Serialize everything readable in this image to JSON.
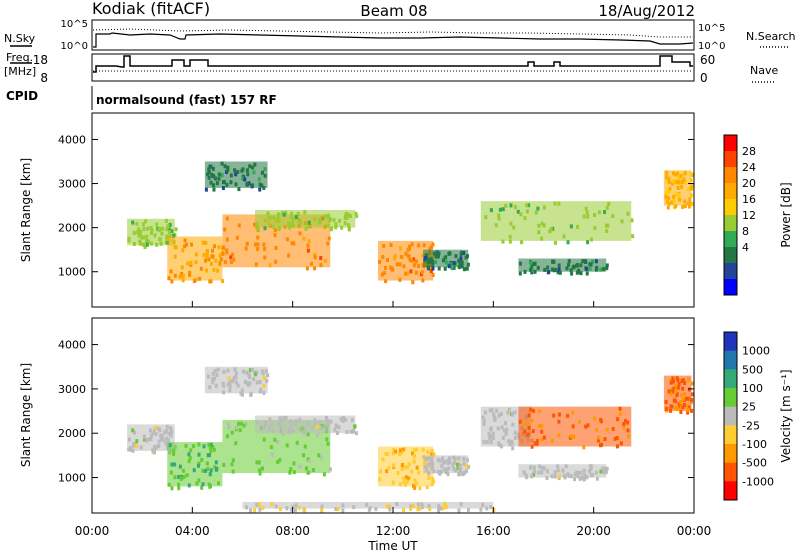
{
  "header": {
    "station": "Kodiak (fitACF)",
    "beam": "Beam 08",
    "date": "18/Aug/2012"
  },
  "noise_panel": {
    "left_label": "N.Sky",
    "right_label": "N.Search",
    "ticks": [
      "10^5",
      "10^0"
    ]
  },
  "freq_panel": {
    "left_label_1": "Freq.",
    "left_label_2": "[MHz]",
    "left_ticks": [
      "18",
      "8"
    ],
    "right_label": "Nave",
    "right_ticks": [
      "60",
      "0"
    ]
  },
  "cpid_panel": {
    "label": "CPID",
    "program": "normalsound (fast) 157 RF"
  },
  "power_colorbar": {
    "title": "Power [dB]",
    "ticks": [
      "28",
      "24",
      "20",
      "16",
      "12",
      "8",
      "4"
    ],
    "colors": [
      "#ff0000",
      "#ff4400",
      "#ff8800",
      "#ffaa00",
      "#ffcc00",
      "#99cc33",
      "#33aa55",
      "#227744",
      "#224499",
      "#0000ff"
    ]
  },
  "velocity_colorbar": {
    "title": "Velocity [m s⁻¹]",
    "ticks": [
      "1000",
      "500",
      "100",
      "25",
      "-25",
      "-100",
      "-500",
      "-1000"
    ],
    "colors": [
      "#2233bb",
      "#2277aa",
      "#33aa77",
      "#66cc33",
      "#bbbbbb",
      "#ffcc33",
      "#ff9900",
      "#ff5500",
      "#ff0000"
    ]
  },
  "chart_data": [
    {
      "type": "heatmap",
      "name": "Power",
      "ylabel": "Slant Range [km]",
      "y_ticks": [
        1000,
        2000,
        3000,
        4000
      ],
      "ylim": [
        200,
        4600
      ],
      "x_ticks": [
        "00:00",
        "04:00",
        "08:00",
        "12:00",
        "16:00",
        "20:00",
        "00:00"
      ],
      "xlim_hours": [
        0,
        24
      ],
      "colorbar_label": "Power [dB]",
      "colorbar_range": [
        0,
        32
      ],
      "echo_regions": [
        {
          "t_start": 1.4,
          "t_end": 3.3,
          "r_start": 1600,
          "r_end": 2200,
          "value": 14
        },
        {
          "t_start": 3.0,
          "t_end": 5.2,
          "r_start": 800,
          "r_end": 1800,
          "value": 22
        },
        {
          "t_start": 5.2,
          "t_end": 9.5,
          "r_start": 1100,
          "r_end": 2300,
          "value": 24
        },
        {
          "t_start": 6.5,
          "t_end": 10.5,
          "r_start": 2000,
          "r_end": 2400,
          "value": 14
        },
        {
          "t_start": 4.5,
          "t_end": 7.0,
          "r_start": 2900,
          "r_end": 3500,
          "value": 8
        },
        {
          "t_start": 11.4,
          "t_end": 13.6,
          "r_start": 800,
          "r_end": 1700,
          "value": 24
        },
        {
          "t_start": 13.2,
          "t_end": 15.0,
          "r_start": 1100,
          "r_end": 1500,
          "value": 8
        },
        {
          "t_start": 15.5,
          "t_end": 21.5,
          "r_start": 1700,
          "r_end": 2600,
          "value": 14
        },
        {
          "t_start": 17.0,
          "t_end": 20.5,
          "r_start": 1000,
          "r_end": 1300,
          "value": 8
        },
        {
          "t_start": 22.8,
          "t_end": 23.9,
          "r_start": 2500,
          "r_end": 3300,
          "value": 20
        }
      ]
    },
    {
      "type": "heatmap",
      "name": "Velocity",
      "ylabel": "Slant Range [km]",
      "y_ticks": [
        1000,
        2000,
        3000,
        4000
      ],
      "ylim": [
        200,
        4600
      ],
      "x_ticks": [
        "00:00",
        "04:00",
        "08:00",
        "12:00",
        "16:00",
        "20:00",
        "00:00"
      ],
      "xlim_hours": [
        0,
        24
      ],
      "xlabel": "Time UT",
      "colorbar_label": "Velocity [m s⁻¹]",
      "colorbar_range": [
        -1000,
        1000
      ],
      "echo_regions": [
        {
          "t_start": 1.4,
          "t_end": 3.3,
          "r_start": 1600,
          "r_end": 2200,
          "value": 0
        },
        {
          "t_start": 3.0,
          "t_end": 5.2,
          "r_start": 800,
          "r_end": 1800,
          "value": 300
        },
        {
          "t_start": 5.2,
          "t_end": 9.5,
          "r_start": 1100,
          "r_end": 2300,
          "value": 150
        },
        {
          "t_start": 6.5,
          "t_end": 10.5,
          "r_start": 2000,
          "r_end": 2400,
          "value": 0
        },
        {
          "t_start": 4.5,
          "t_end": 7.0,
          "r_start": 2900,
          "r_end": 3500,
          "value": 0
        },
        {
          "t_start": 11.4,
          "t_end": 13.6,
          "r_start": 800,
          "r_end": 1700,
          "value": -250
        },
        {
          "t_start": 13.2,
          "t_end": 15.0,
          "r_start": 1100,
          "r_end": 1500,
          "value": 0
        },
        {
          "t_start": 15.5,
          "t_end": 17.5,
          "r_start": 1700,
          "r_end": 2600,
          "value": 0
        },
        {
          "t_start": 17.0,
          "t_end": 21.5,
          "r_start": 1700,
          "r_end": 2600,
          "value": -600
        },
        {
          "t_start": 17.0,
          "t_end": 20.5,
          "r_start": 1000,
          "r_end": 1300,
          "value": 0
        },
        {
          "t_start": 22.8,
          "t_end": 23.9,
          "r_start": 2500,
          "r_end": 3300,
          "value": -600
        },
        {
          "t_start": 6.0,
          "t_end": 16.0,
          "r_start": 300,
          "r_end": 450,
          "value": -60
        }
      ]
    }
  ]
}
